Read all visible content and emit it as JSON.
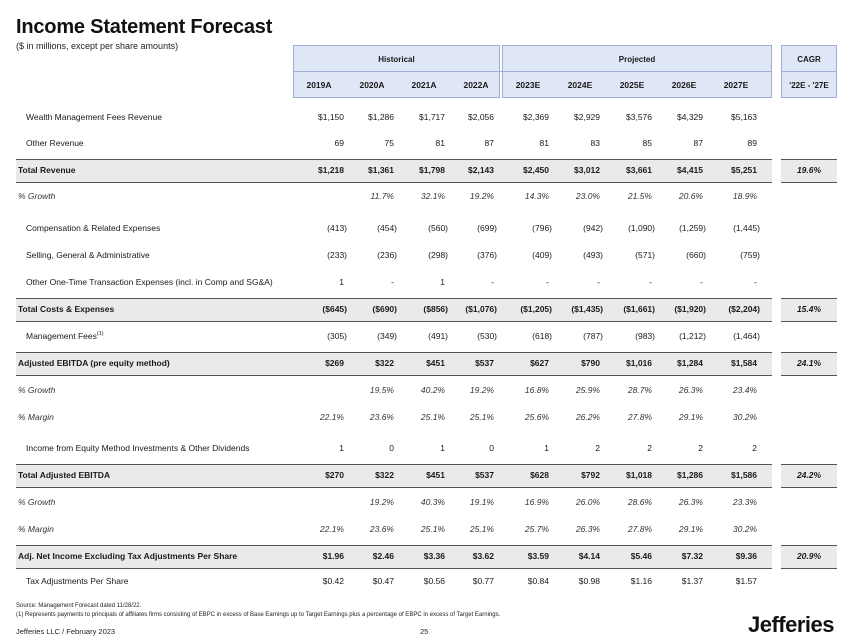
{
  "page": {
    "title": "Income Statement Forecast",
    "subtitle": "($ in millions, except per share amounts)"
  },
  "header": {
    "historical": "Historical",
    "projected": "Projected",
    "cagr": "CAGR",
    "cagr_period": "'22E - '27E",
    "years": [
      "2019A",
      "2020A",
      "2021A",
      "2022A",
      "2023E",
      "2024E",
      "2025E",
      "2026E",
      "2027E"
    ]
  },
  "rows": [
    {
      "label": "Wealth Management Fees Revenue",
      "values": [
        "$1,150",
        "$1,286",
        "$1,717",
        "$2,056",
        "$2,369",
        "$2,929",
        "$3,576",
        "$4,329",
        "$5,163"
      ]
    },
    {
      "label": "Other Revenue",
      "values": [
        "69",
        "75",
        "81",
        "87",
        "81",
        "83",
        "85",
        "87",
        "89"
      ]
    },
    {
      "label": "Total Revenue",
      "values": [
        "$1,218",
        "$1,361",
        "$1,798",
        "$2,143",
        "$2,450",
        "$3,012",
        "$3,661",
        "$4,415",
        "$5,251"
      ],
      "cagr": "19.6%"
    },
    {
      "label": "% Growth",
      "values": [
        "",
        "11.7%",
        "32.1%",
        "19.2%",
        "14.3%",
        "23.0%",
        "21.5%",
        "20.6%",
        "18.9%"
      ]
    },
    {
      "label": "Compensation & Related Expenses",
      "values": [
        "(413)",
        "(454)",
        "(560)",
        "(699)",
        "(796)",
        "(942)",
        "(1,090)",
        "(1,259)",
        "(1,445)"
      ]
    },
    {
      "label": "Selling, General & Administrative",
      "values": [
        "(233)",
        "(236)",
        "(298)",
        "(376)",
        "(409)",
        "(493)",
        "(571)",
        "(660)",
        "(759)"
      ]
    },
    {
      "label": "Other One-Time Transaction Expenses (incl. in Comp and SG&A)",
      "values": [
        "1",
        "-",
        "1",
        "-",
        "-",
        "-",
        "-",
        "-",
        "-"
      ]
    },
    {
      "label": "Total Costs & Expenses",
      "values": [
        "($645)",
        "($690)",
        "($856)",
        "($1,076)",
        "($1,205)",
        "($1,435)",
        "($1,661)",
        "($1,920)",
        "($2,204)"
      ],
      "cagr": "15.4%"
    },
    {
      "label": "Management Fees",
      "sup": "(1)",
      "values": [
        "(305)",
        "(349)",
        "(491)",
        "(530)",
        "(618)",
        "(787)",
        "(983)",
        "(1,212)",
        "(1,464)"
      ]
    },
    {
      "label": "Adjusted EBITDA (pre equity method)",
      "values": [
        "$269",
        "$322",
        "$451",
        "$537",
        "$627",
        "$790",
        "$1,016",
        "$1,284",
        "$1,584"
      ],
      "cagr": "24.1%"
    },
    {
      "label": "% Growth",
      "values": [
        "",
        "19.5%",
        "40.2%",
        "19.2%",
        "16.8%",
        "25.9%",
        "28.7%",
        "26.3%",
        "23.4%"
      ]
    },
    {
      "label": "% Margin",
      "values": [
        "22.1%",
        "23.6%",
        "25.1%",
        "25.1%",
        "25.6%",
        "26.2%",
        "27.8%",
        "29.1%",
        "30.2%"
      ]
    },
    {
      "label": "Income from Equity Method Investments & Other Dividends",
      "values": [
        "1",
        "0",
        "1",
        "0",
        "1",
        "2",
        "2",
        "2",
        "2"
      ]
    },
    {
      "label": "Total Adjusted EBITDA",
      "values": [
        "$270",
        "$322",
        "$451",
        "$537",
        "$628",
        "$792",
        "$1,018",
        "$1,286",
        "$1,586"
      ],
      "cagr": "24.2%"
    },
    {
      "label": "% Growth",
      "values": [
        "",
        "19.2%",
        "40.3%",
        "19.1%",
        "16.9%",
        "26.0%",
        "28.6%",
        "26.3%",
        "23.3%"
      ]
    },
    {
      "label": "% Margin",
      "values": [
        "22.1%",
        "23.6%",
        "25.1%",
        "25.1%",
        "25.7%",
        "26.3%",
        "27.8%",
        "29.1%",
        "30.2%"
      ]
    },
    {
      "label": "Adj. Net Income Excluding Tax Adjustments Per Share",
      "values": [
        "$1.96",
        "$2.46",
        "$3.36",
        "$3.62",
        "$3.59",
        "$4.14",
        "$5.46",
        "$7.32",
        "$9.36"
      ],
      "cagr": "20.9%"
    },
    {
      "label": "Tax Adjustments Per Share",
      "values": [
        "$0.42",
        "$0.47",
        "$0.56",
        "$0.77",
        "$0.84",
        "$0.98",
        "$1.16",
        "$1.37",
        "$1.57"
      ]
    }
  ],
  "footnotes": {
    "source": "Source: Management Forecast dated 11/28/22.",
    "note1": "(1)     Represents payments to principals of affiliates firms consisting of EBPC in excess of Base Earnings up to Target Earnings plus a percentage of EBPC in excess of Target Earnings."
  },
  "footer": {
    "company": "Jefferies LLC  /  February 2023",
    "page_number": "25",
    "brand": "Jefferies"
  }
}
